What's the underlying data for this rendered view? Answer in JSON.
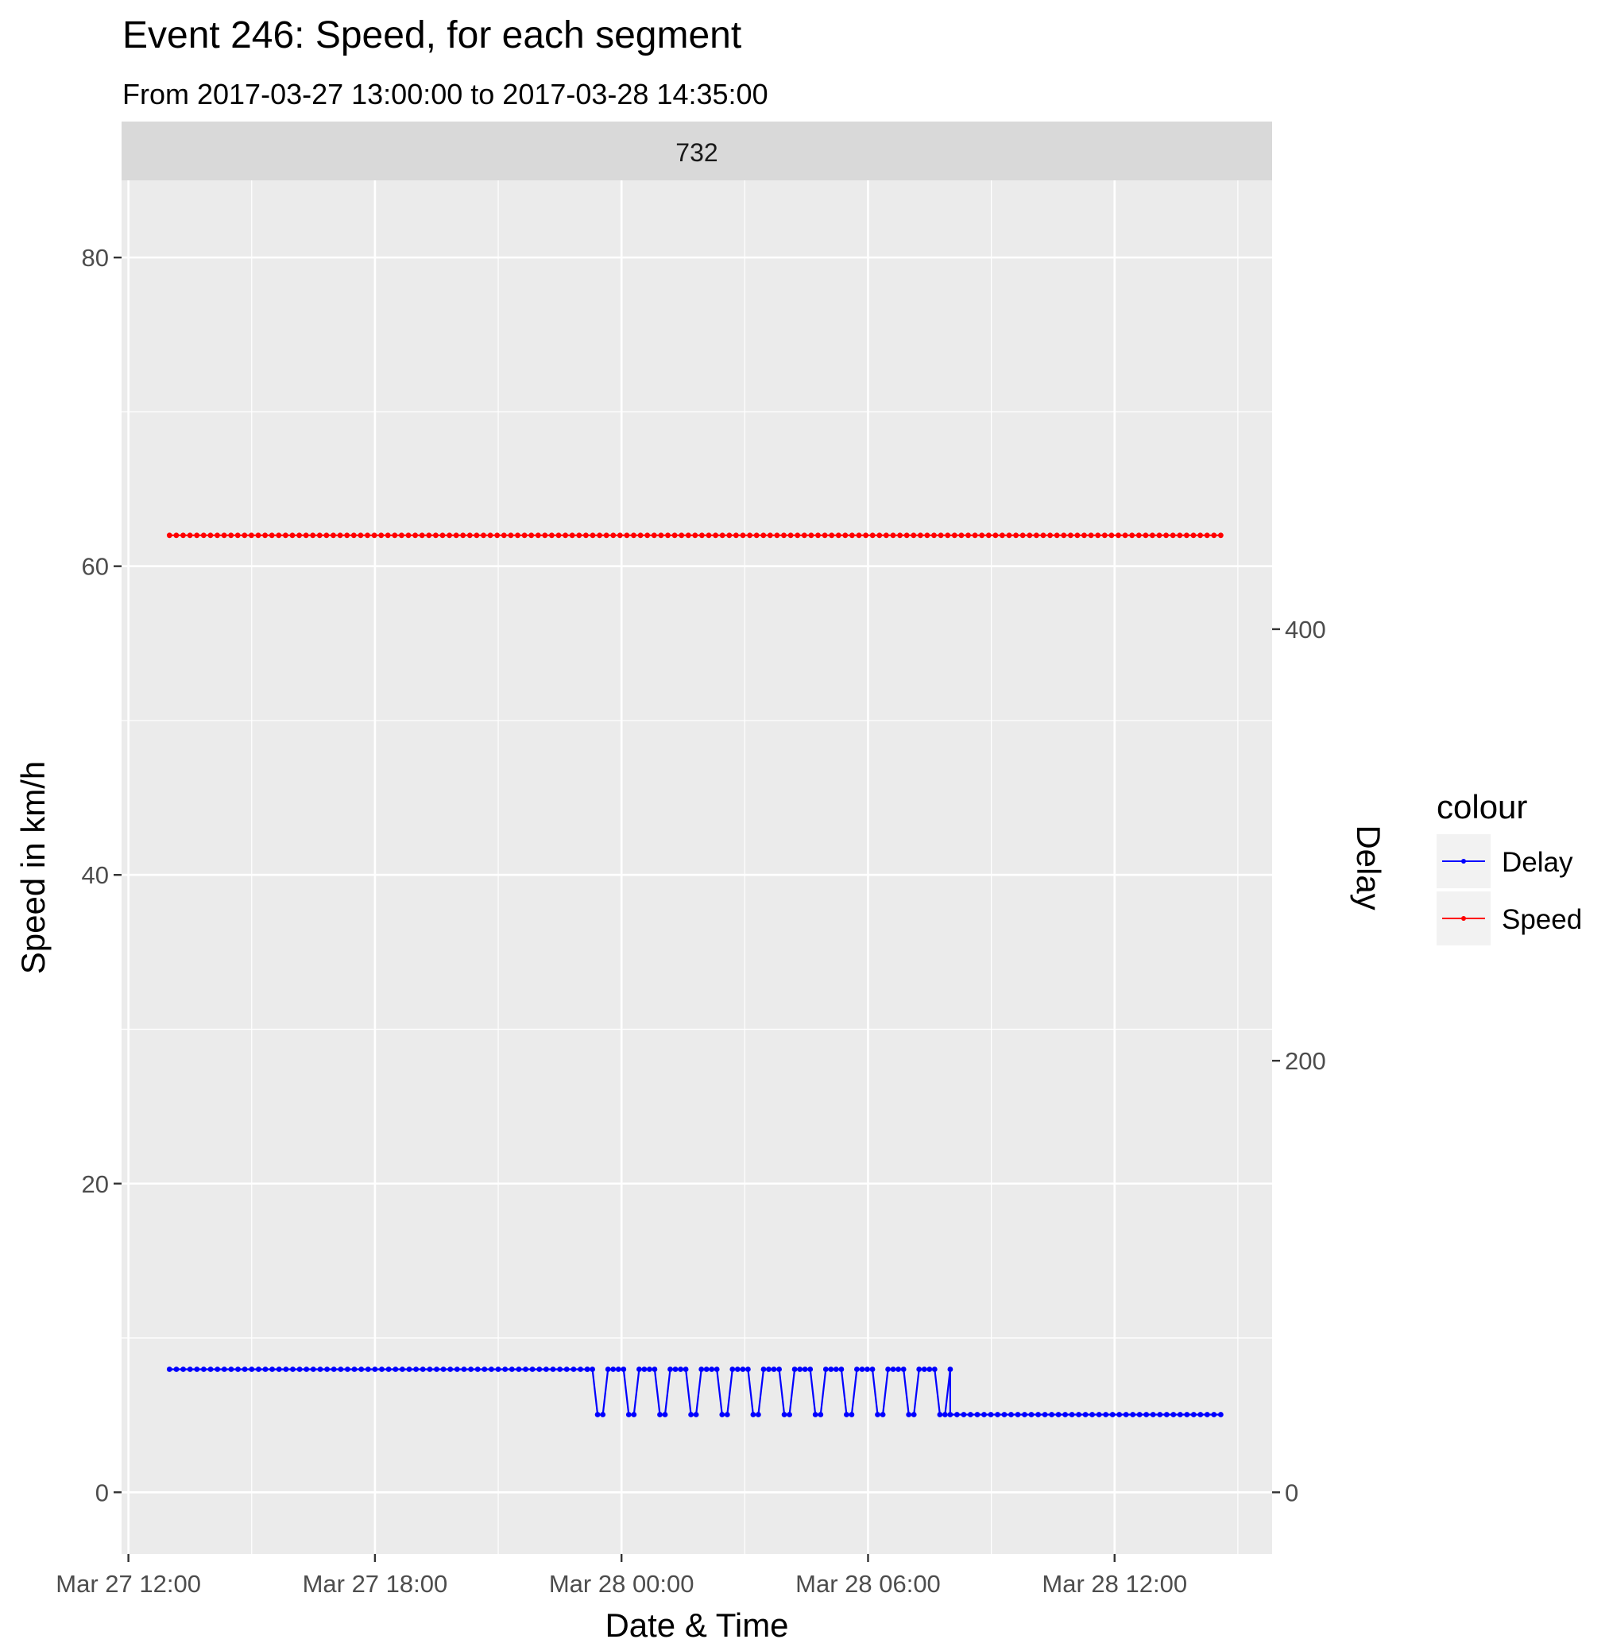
{
  "chart_data": {
    "type": "line",
    "title": "Event 246: Speed, for each segment",
    "subtitle": "From 2017-03-27 13:00:00 to 2017-03-28 14:35:00",
    "facet_label": "732",
    "xlabel": "Date & Time",
    "ylabel": "Speed in km/h",
    "y2label": "Delay",
    "x_ticks": [
      "Mar 27 12:00",
      "Mar 27 18:00",
      "Mar 28 00:00",
      "Mar 28 06:00",
      "Mar 28 12:00"
    ],
    "x_tick_values": [
      "2017-03-27 12:00",
      "2017-03-27 18:00",
      "2017-03-28 00:00",
      "2017-03-28 06:00",
      "2017-03-28 12:00"
    ],
    "xlim": [
      "2017-03-27 11:50",
      "2017-03-28 15:50"
    ],
    "y_ticks": [
      "0",
      "20",
      "40",
      "60",
      "80"
    ],
    "ylim": [
      -4,
      85
    ],
    "y2_ticks": [
      "0",
      "200",
      "400"
    ],
    "y2lim": [
      -28.6,
      608
    ],
    "grid": true,
    "legend": {
      "title": "colour",
      "position": "right",
      "entries": [
        "Delay",
        "Speed"
      ]
    },
    "series": [
      {
        "name": "Delay",
        "color": "#0000ff",
        "axis": "y2",
        "segments": [
          {
            "from": "2017-03-27 13:00",
            "to": "2017-03-27 23:10",
            "value": 57
          },
          {
            "from": "2017-03-27 23:10",
            "to": "2017-03-28 08:00",
            "value_high": 57,
            "value_low": 36,
            "pattern": "oscillating"
          },
          {
            "from": "2017-03-28 08:00",
            "to": "2017-03-28 14:35",
            "value": 36
          }
        ]
      },
      {
        "name": "Speed",
        "color": "#ff0000",
        "axis": "y",
        "segments": [
          {
            "from": "2017-03-27 13:00",
            "to": "2017-03-28 14:35",
            "value": 62
          }
        ]
      }
    ]
  }
}
